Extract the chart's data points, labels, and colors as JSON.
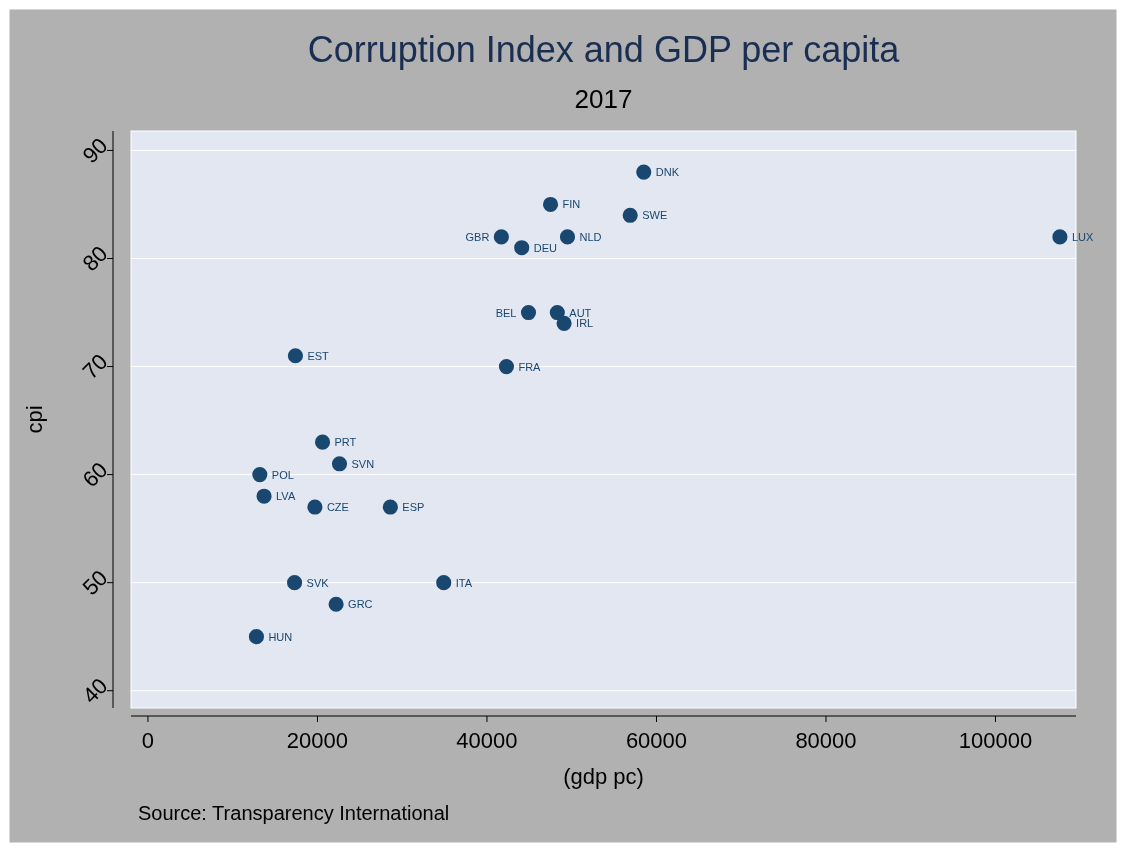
{
  "chart_data": {
    "type": "scatter",
    "title": "Corruption Index and GDP per capita",
    "subtitle": "2017",
    "xlabel": "(gdp pc)",
    "ylabel": "cpi",
    "x": [
      58500,
      47500,
      56900,
      41700,
      49500,
      44100,
      107600,
      44900,
      48300,
      49100,
      17400,
      42300,
      20600,
      22600,
      13200,
      13700,
      19700,
      28600,
      17300,
      34900,
      22200,
      12800
    ],
    "series": [
      {
        "color": "#1a476f",
        "values": [
          88,
          85,
          84,
          82,
          82,
          81,
          82,
          75,
          75,
          74,
          71,
          70,
          63,
          61,
          60,
          58,
          57,
          57,
          50,
          50,
          48,
          45
        ]
      }
    ],
    "xlim": [
      -2000,
      109500
    ],
    "xticks": [
      0,
      20000,
      40000,
      60000,
      80000,
      100000
    ],
    "ylim": [
      38.4,
      91.8
    ],
    "yticks": [
      40,
      50,
      60,
      70,
      80,
      90
    ],
    "grid": "y",
    "marker": "circle",
    "annotations": [
      {
        "text": "DNK",
        "x": 58500,
        "y": 88
      },
      {
        "text": "FIN",
        "x": 47500,
        "y": 85
      },
      {
        "text": "SWE",
        "x": 56900,
        "y": 84
      },
      {
        "text": "GBR",
        "x": 41700,
        "y": 82
      },
      {
        "text": "NLD",
        "x": 49500,
        "y": 82
      },
      {
        "text": "DEU",
        "x": 44100,
        "y": 81
      },
      {
        "text": "LUX",
        "x": 107600,
        "y": 82
      },
      {
        "text": "BEL",
        "x": 44900,
        "y": 75
      },
      {
        "text": "AUT",
        "x": 48300,
        "y": 75
      },
      {
        "text": "IRL",
        "x": 49100,
        "y": 74
      },
      {
        "text": "EST",
        "x": 17400,
        "y": 71
      },
      {
        "text": "FRA",
        "x": 42300,
        "y": 70
      },
      {
        "text": "PRT",
        "x": 20600,
        "y": 63
      },
      {
        "text": "SVN",
        "x": 22600,
        "y": 61
      },
      {
        "text": "POL",
        "x": 13200,
        "y": 60
      },
      {
        "text": "LVA",
        "x": 13700,
        "y": 58
      },
      {
        "text": "CZE",
        "x": 19700,
        "y": 57
      },
      {
        "text": "ESP",
        "x": 28600,
        "y": 57
      },
      {
        "text": "SVK",
        "x": 17300,
        "y": 50
      },
      {
        "text": "ITA",
        "x": 34900,
        "y": 50
      },
      {
        "text": "GRC",
        "x": 22200,
        "y": 48
      },
      {
        "text": "HUN",
        "x": 12800,
        "y": 45
      },
      "Source: Transparency International"
    ]
  }
}
